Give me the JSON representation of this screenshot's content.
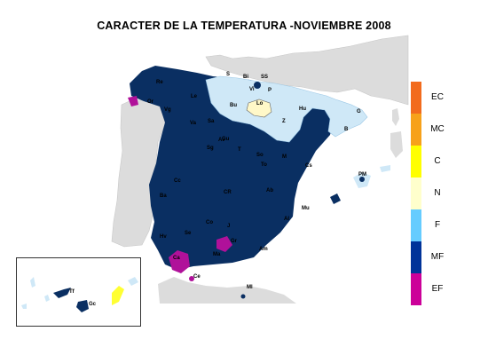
{
  "title": "CARACTER DE LA TEMPERATURA -NOVIEMBRE 2008",
  "legend": [
    {
      "label": "EC",
      "color": "#f26b1d"
    },
    {
      "label": "MC",
      "color": "#f7a11a"
    },
    {
      "label": "C",
      "color": "#ffff00"
    },
    {
      "label": "N",
      "color": "#ffffcc"
    },
    {
      "label": "F",
      "color": "#66ccff"
    },
    {
      "label": "MF",
      "color": "#003399"
    },
    {
      "label": "EF",
      "color": "#cc0099"
    }
  ],
  "colors": {
    "mf_fill": "#0a2f62",
    "f_fill": "#cfe8f7",
    "n_fill": "#fff8c8",
    "c_fill": "#ffff33",
    "ef_fill": "#b0119a",
    "land_gray": "#dcdcdc"
  },
  "station_labels": [
    "S",
    "Bi",
    "SS",
    "Vi",
    "P",
    "Lo",
    "Bu",
    "Hu",
    "Z",
    "G",
    "B",
    "Re",
    "Le",
    "Or",
    "Vg",
    "Sa",
    "Va",
    "Av",
    "Sg",
    "Gu",
    "T",
    "So",
    "M",
    "To",
    "Cs",
    "Cc",
    "Ba",
    "CR",
    "Ab",
    "Al",
    "Mu",
    "J",
    "Co",
    "Gr",
    "Se",
    "Hv",
    "Ca",
    "Ma",
    "Am",
    "Ce",
    "Ml",
    "PM",
    "Tf",
    "Gc"
  ]
}
